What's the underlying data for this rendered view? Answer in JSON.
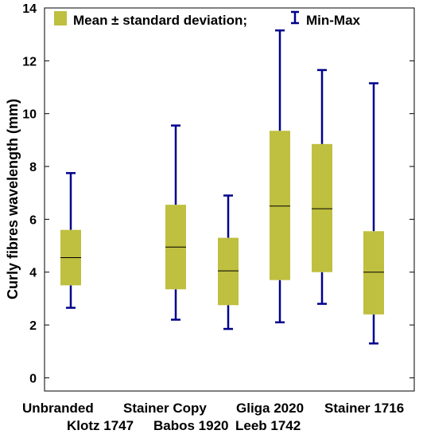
{
  "chart_data": {
    "type": "box",
    "title": "",
    "xlabel": "",
    "ylabel": "Curly fibres wavelength (mm)",
    "ylim": [
      -0.5,
      14
    ],
    "yticks": [
      "0",
      "2",
      "4",
      "6",
      "8",
      "10",
      "12",
      "14"
    ],
    "legend": {
      "placement": "top",
      "box_label": "Mean ± standard deviation;",
      "whisker_label": "Min-Max"
    },
    "colors": {
      "box": "#bfbf40",
      "whisker": "#00008b",
      "median": "#000000"
    },
    "categories": [
      "Unbranded",
      "Klotz 1747",
      "Stainer Copy",
      "Babos 1920",
      "Gliga 2020",
      "Leeb 1742",
      "Stainer 1716"
    ],
    "boxes": [
      {
        "name": "Unbranded",
        "min": 2.65,
        "q_low": 3.5,
        "mean": 4.55,
        "q_high": 5.6,
        "max": 7.75
      },
      {
        "name": "Stainer Copy",
        "min": 2.2,
        "q_low": 3.35,
        "mean": 4.95,
        "q_high": 6.55,
        "max": 9.55
      },
      {
        "name": "Babos 1920",
        "min": 1.85,
        "q_low": 2.75,
        "mean": 4.05,
        "q_high": 5.3,
        "max": 6.9
      },
      {
        "name": "Gliga 2020",
        "min": 2.1,
        "q_low": 3.7,
        "mean": 6.5,
        "q_high": 9.35,
        "max": 13.15
      },
      {
        "name": "Leeb 1742",
        "min": 2.8,
        "q_low": 4.0,
        "mean": 6.4,
        "q_high": 8.85,
        "max": 11.65
      },
      {
        "name": "Stainer 1716",
        "min": 1.3,
        "q_low": 2.4,
        "mean": 4.0,
        "q_high": 5.55,
        "max": 11.15
      }
    ]
  }
}
